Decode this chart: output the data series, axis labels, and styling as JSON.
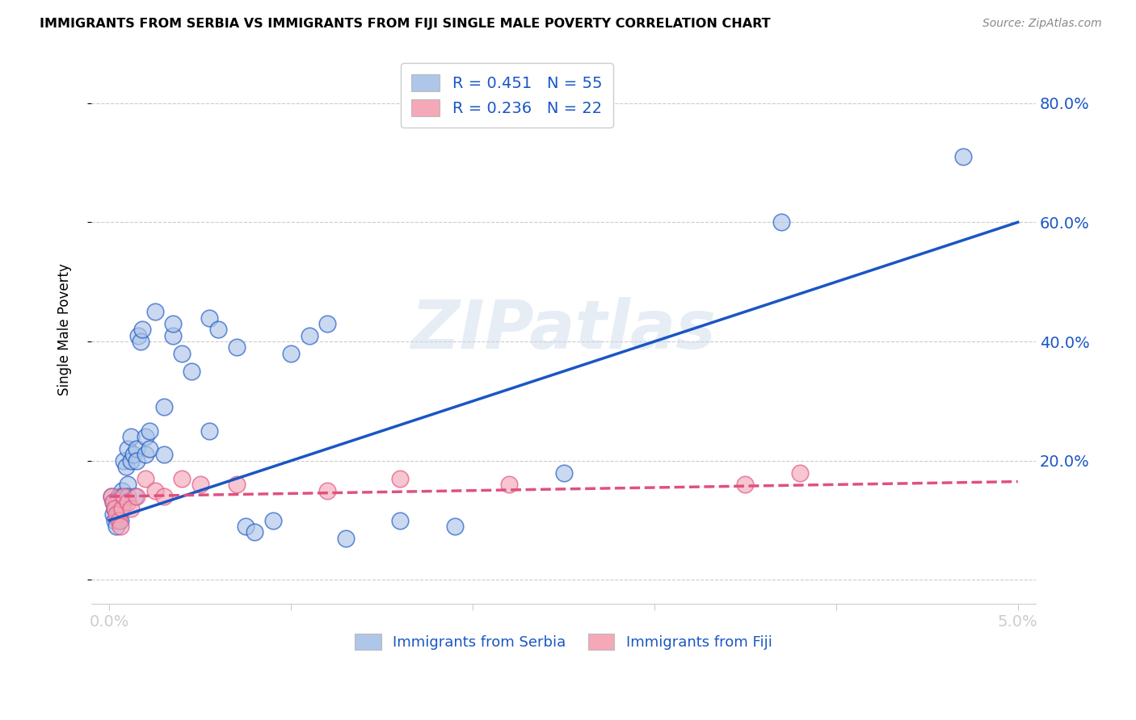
{
  "title": "IMMIGRANTS FROM SERBIA VS IMMIGRANTS FROM FIJI SINGLE MALE POVERTY CORRELATION CHART",
  "source": "Source: ZipAtlas.com",
  "xlabel_Serbia": "Immigrants from Serbia",
  "xlabel_Fiji": "Immigrants from Fiji",
  "ylabel": "Single Male Poverty",
  "xlim": [
    -0.001,
    0.051
  ],
  "ylim": [
    -0.04,
    0.88
  ],
  "ytick_vals": [
    0.0,
    0.2,
    0.4,
    0.6,
    0.8
  ],
  "ytick_labels": [
    "",
    "20.0%",
    "40.0%",
    "60.0%",
    "80.0%"
  ],
  "xtick_vals": [
    0.0,
    0.01,
    0.02,
    0.03,
    0.04,
    0.05
  ],
  "xtick_labels": [
    "0.0%",
    "",
    "",
    "",
    "",
    "5.0%"
  ],
  "R_serbia": 0.451,
  "N_serbia": 55,
  "R_fiji": 0.236,
  "N_fiji": 22,
  "serbia_color": "#aec6e8",
  "fiji_color": "#f4a8b8",
  "serbia_line_color": "#1a56c4",
  "fiji_line_color": "#e05080",
  "watermark": "ZIPatlas",
  "serbia_x": [
    0.0001,
    0.0002,
    0.0002,
    0.0003,
    0.0003,
    0.0004,
    0.0004,
    0.0005,
    0.0005,
    0.0006,
    0.0006,
    0.0007,
    0.0007,
    0.0008,
    0.0008,
    0.0009,
    0.001,
    0.001,
    0.001,
    0.0012,
    0.0012,
    0.0013,
    0.0014,
    0.0015,
    0.0015,
    0.0016,
    0.0017,
    0.0018,
    0.002,
    0.002,
    0.0022,
    0.0022,
    0.0025,
    0.003,
    0.003,
    0.0035,
    0.0035,
    0.004,
    0.0045,
    0.0055,
    0.0055,
    0.006,
    0.007,
    0.0075,
    0.008,
    0.009,
    0.01,
    0.011,
    0.012,
    0.013,
    0.016,
    0.019,
    0.025,
    0.037,
    0.047
  ],
  "serbia_y": [
    0.14,
    0.13,
    0.11,
    0.12,
    0.1,
    0.09,
    0.13,
    0.11,
    0.14,
    0.12,
    0.1,
    0.15,
    0.14,
    0.13,
    0.2,
    0.19,
    0.16,
    0.14,
    0.22,
    0.2,
    0.24,
    0.21,
    0.14,
    0.22,
    0.2,
    0.41,
    0.4,
    0.42,
    0.21,
    0.24,
    0.25,
    0.22,
    0.45,
    0.21,
    0.29,
    0.41,
    0.43,
    0.38,
    0.35,
    0.44,
    0.25,
    0.42,
    0.39,
    0.09,
    0.08,
    0.1,
    0.38,
    0.41,
    0.43,
    0.07,
    0.1,
    0.09,
    0.18,
    0.6,
    0.71
  ],
  "fiji_x": [
    0.0001,
    0.0002,
    0.0003,
    0.0004,
    0.0005,
    0.0006,
    0.0007,
    0.0008,
    0.001,
    0.0012,
    0.0015,
    0.002,
    0.0025,
    0.003,
    0.004,
    0.005,
    0.007,
    0.012,
    0.016,
    0.022,
    0.035,
    0.038
  ],
  "fiji_y": [
    0.14,
    0.13,
    0.12,
    0.11,
    0.1,
    0.09,
    0.12,
    0.14,
    0.13,
    0.12,
    0.14,
    0.17,
    0.15,
    0.14,
    0.17,
    0.16,
    0.16,
    0.15,
    0.17,
    0.16,
    0.16,
    0.18
  ]
}
